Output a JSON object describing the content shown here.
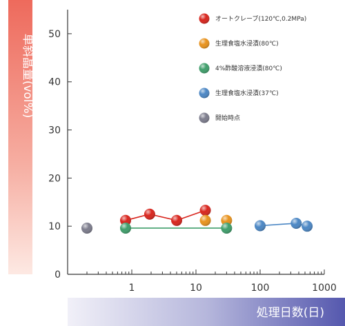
{
  "chart_data": {
    "type": "scatter",
    "x_scale": "log",
    "xlim": [
      0.1,
      1000
    ],
    "ylim": [
      0,
      55
    ],
    "x_ticks": [
      {
        "value": 1,
        "label": "1"
      },
      {
        "value": 10,
        "label": "10"
      },
      {
        "value": 100,
        "label": "100"
      },
      {
        "value": 1000,
        "label": "1000"
      }
    ],
    "y_ticks": [
      {
        "value": 0,
        "label": "0"
      },
      {
        "value": 10,
        "label": "10"
      },
      {
        "value": 20,
        "label": "20"
      },
      {
        "value": 30,
        "label": "30"
      },
      {
        "value": 40,
        "label": "40"
      },
      {
        "value": 50,
        "label": "50"
      }
    ],
    "xlabel": "処理日数(日)",
    "ylabel": "単斜晶量(vol%)",
    "grid": false,
    "legend_position": "top-right",
    "series": [
      {
        "name": "オートクレーブ(120℃,0.2MPa)",
        "color": "#d8241c",
        "line": true,
        "x": [
          0.8,
          1.9,
          5,
          14
        ],
        "y": [
          11.2,
          12.5,
          11.2,
          13.3
        ]
      },
      {
        "name": "生理食塩水浸漬(80℃)",
        "color": "#e8921c",
        "line": false,
        "x": [
          14,
          30
        ],
        "y": [
          11.2,
          11.2
        ]
      },
      {
        "name": "4%酢酸溶液浸漬(80℃)",
        "color": "#3e9e6a",
        "line": true,
        "x": [
          0.8,
          30
        ],
        "y": [
          9.6,
          9.6
        ]
      },
      {
        "name": "生理食塩水浸漬(37℃)",
        "color": "#4a86c4",
        "line": true,
        "x": [
          100,
          365,
          540
        ],
        "y": [
          10.1,
          10.6,
          10.0
        ]
      },
      {
        "name": "開始時点",
        "color": "#7c7c8c",
        "line": false,
        "x": [
          0.2
        ],
        "y": [
          9.6
        ]
      }
    ]
  }
}
